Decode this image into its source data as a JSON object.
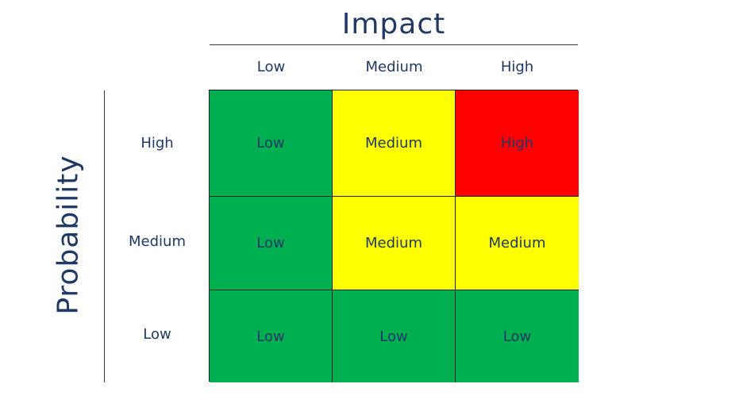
{
  "x_axis": {
    "title": "Impact",
    "columns": [
      "Low",
      "Medium",
      "High"
    ]
  },
  "y_axis": {
    "title": "Probability",
    "rows": [
      "High",
      "Medium",
      "Low"
    ]
  },
  "colors": {
    "low": "#00b050",
    "medium": "#ffff00",
    "high": "#ff0000",
    "text": "#1f3864"
  },
  "matrix": [
    [
      "Low",
      "Medium",
      "High"
    ],
    [
      "Low",
      "Medium",
      "Medium"
    ],
    [
      "Low",
      "Low",
      "Low"
    ]
  ],
  "cell_levels": [
    [
      "low",
      "medium",
      "high"
    ],
    [
      "low",
      "medium",
      "medium"
    ],
    [
      "low",
      "low",
      "low"
    ]
  ]
}
